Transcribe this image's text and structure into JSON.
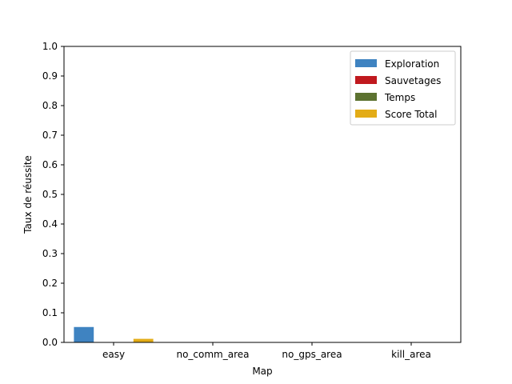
{
  "chart_data": {
    "type": "bar",
    "title": "",
    "xlabel": "Map",
    "ylabel": "Taux de réussite",
    "categories": [
      "easy",
      "no_comm_area",
      "no_gps_area",
      "kill_area"
    ],
    "ylim": [
      0,
      1.0
    ],
    "yticks": [
      "0.0",
      "0.1",
      "0.2",
      "0.3",
      "0.4",
      "0.5",
      "0.6",
      "0.7",
      "0.8",
      "0.9",
      "1.0"
    ],
    "grid": false,
    "legend_position": "top-right",
    "series": [
      {
        "name": "Exploration",
        "color": "#3f83c1",
        "values": [
          0.052,
          0,
          0,
          0
        ]
      },
      {
        "name": "Sauvetages",
        "color": "#c0191e",
        "values": [
          0,
          0,
          0,
          0
        ]
      },
      {
        "name": "Temps",
        "color": "#5c7230",
        "values": [
          0,
          0,
          0,
          0
        ]
      },
      {
        "name": "Score Total",
        "color": "#e3ac17",
        "values": [
          0.012,
          0,
          0,
          0
        ]
      }
    ]
  }
}
